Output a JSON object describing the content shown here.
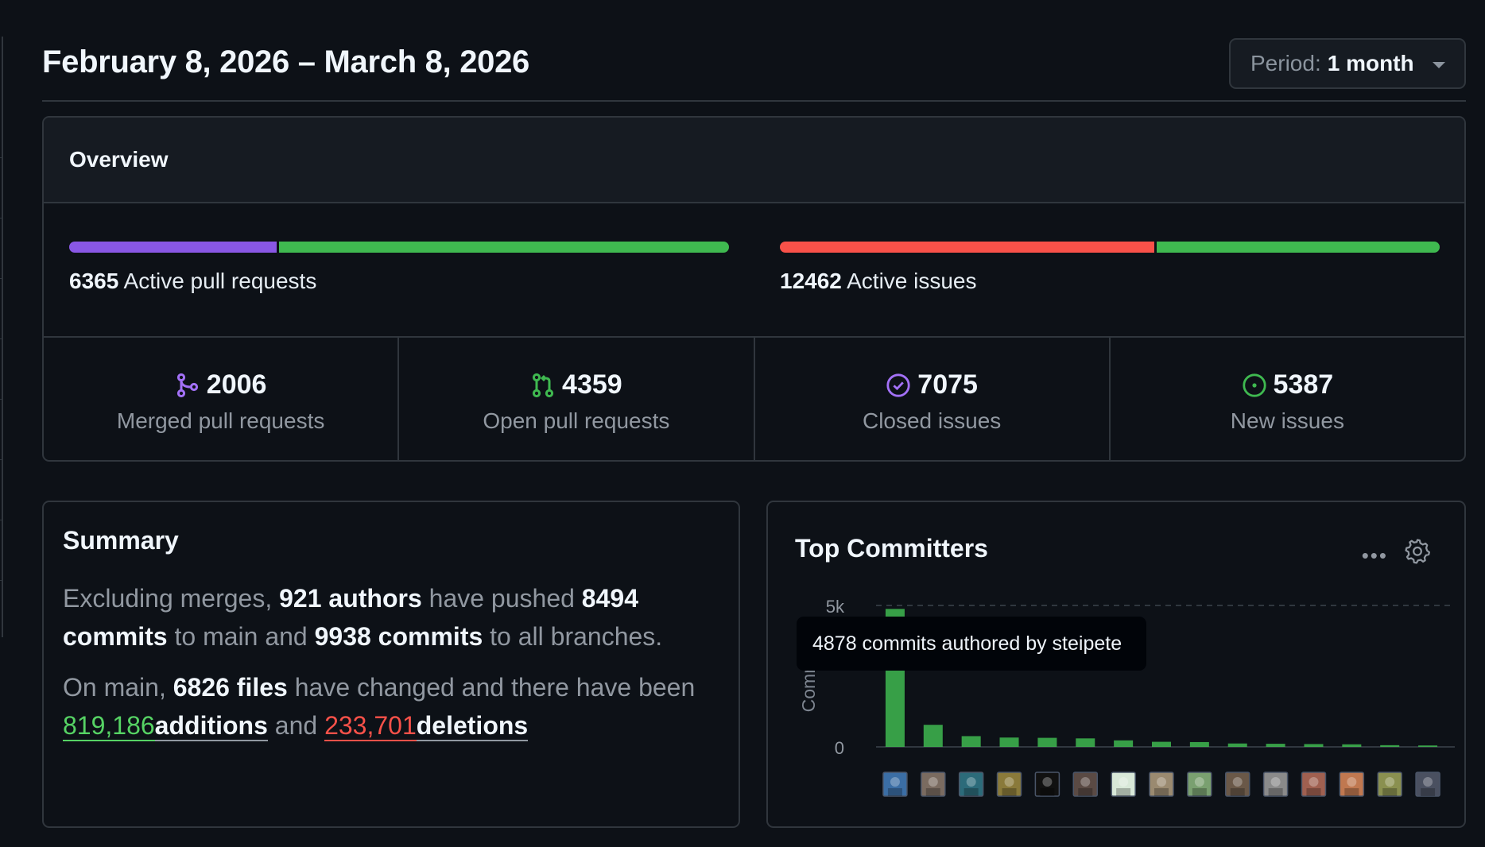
{
  "header": {
    "date_range": "February 8, 2026 – March 8, 2026",
    "period_label": "Period:",
    "period_value": "1 month"
  },
  "overview": {
    "title": "Overview",
    "pull_requests": {
      "count": "6365",
      "label": "Active pull requests",
      "merged_fraction": 0.315,
      "colors": [
        "#8957e5",
        "#3fb950"
      ]
    },
    "issues": {
      "count": "12462",
      "label": "Active issues",
      "closed_fraction": 0.568,
      "colors": [
        "#f85149",
        "#3fb950"
      ]
    },
    "stats": [
      {
        "value": "2006",
        "label": "Merged pull requests",
        "icon": "merge-icon",
        "color": "#a371f7"
      },
      {
        "value": "4359",
        "label": "Open pull requests",
        "icon": "pull-request-icon",
        "color": "#3fb950"
      },
      {
        "value": "7075",
        "label": "Closed issues",
        "icon": "issue-closed-icon",
        "color": "#a371f7"
      },
      {
        "value": "5387",
        "label": "New issues",
        "icon": "issue-open-icon",
        "color": "#3fb950"
      }
    ]
  },
  "summary": {
    "title": "Summary",
    "p1_a": "Excluding merges, ",
    "authors": "921 authors",
    "p1_b": " have pushed ",
    "commits_main": "8494 commits",
    "p1_c": " to main and ",
    "commits_all": "9938 commits",
    "p1_d": " to all branches.",
    "p2_a": "On main, ",
    "files": "6826 files",
    "p2_b": " have changed and there have been ",
    "additions_num": "819,186",
    "additions_word": "additions",
    "p2_c": " and ",
    "deletions_num": "233,701",
    "deletions_word": "deletions"
  },
  "committers": {
    "title": "Top Committers",
    "more_icon": "kebab-horizontal-icon",
    "settings_icon": "gear-icon",
    "tooltip": "4878 commits authored by steipete",
    "bar_color": "#3fb950"
  },
  "chart_data": {
    "type": "bar",
    "ylabel": "Commits",
    "yticks": [
      "5k",
      "0"
    ],
    "ylim": [
      0,
      5000
    ],
    "grid": "dashed line at 5k",
    "categories": [
      "steipete",
      "",
      "",
      "",
      "",
      "",
      "",
      "",
      "",
      "",
      "",
      "",
      "",
      "",
      ""
    ],
    "values": [
      4878,
      780,
      380,
      330,
      320,
      300,
      230,
      180,
      170,
      120,
      110,
      100,
      90,
      60,
      50
    ],
    "avatar_colors": [
      "#3b6ea5",
      "#7a6b60",
      "#2c6b7a",
      "#8a7a3a",
      "#111111",
      "#5a4a44",
      "#d8e8d8",
      "#9a8a70",
      "#7aa070",
      "#6a5848",
      "#8a8a8a",
      "#a06050",
      "#c07850",
      "#8a9050",
      "#4a5060"
    ]
  }
}
